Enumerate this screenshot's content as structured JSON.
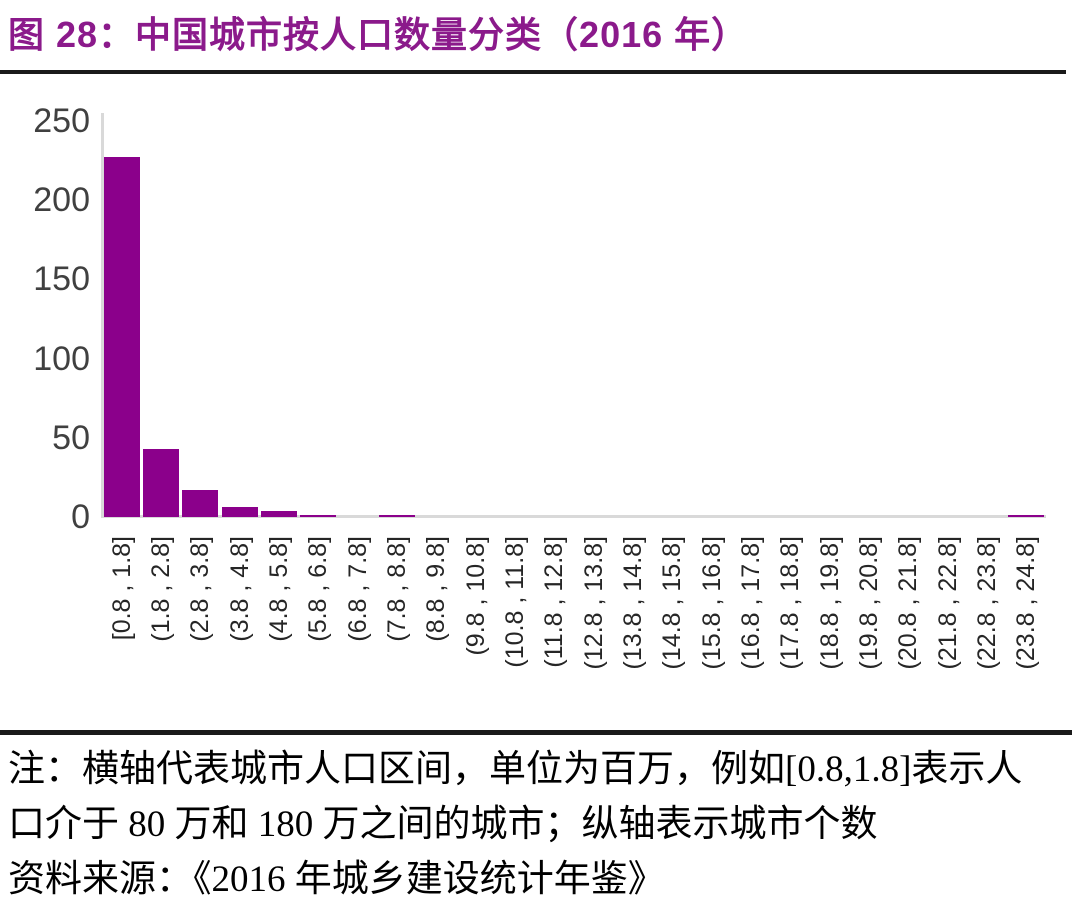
{
  "title": "图 28：中国城市按人口数量分类（2016 年）",
  "colors": {
    "title": "#8B1A8B",
    "bar": "#8B008B",
    "axis": "#D9D9D9",
    "divider": "#1A1A1A",
    "tick_text": "#404040"
  },
  "chart_data": {
    "type": "bar",
    "title": "图 28：中国城市按人口数量分类（2016 年）",
    "xlabel": "",
    "ylabel": "",
    "categories": [
      "[0.8 , 1.8]",
      "(1.8 , 2.8]",
      "(2.8 , 3.8]",
      "(3.8 , 4.8]",
      "(4.8 , 5.8]",
      "(5.8 , 6.8]",
      "(6.8 , 7.8]",
      "(7.8 , 8.8]",
      "(8.8 , 9.8]",
      "(9.8 , 10.8]",
      "(10.8 , 11.8]",
      "(11.8 , 12.8]",
      "(12.8 , 13.8]",
      "(13.8 , 14.8]",
      "(14.8 , 15.8]",
      "(15.8 , 16.8]",
      "(16.8 , 17.8]",
      "(17.8 , 18.8]",
      "(18.8 , 19.8]",
      "(19.8 , 20.8]",
      "(20.8 , 21.8]",
      "(21.8 , 22.8]",
      "(22.8 , 23.8]",
      "(23.8 , 24.8]"
    ],
    "values": [
      227,
      43,
      17,
      6,
      4,
      1,
      0,
      1,
      0,
      0,
      0,
      0,
      0,
      0,
      0,
      0,
      0,
      0,
      0,
      0,
      0,
      0,
      0,
      1
    ],
    "ylim": [
      0,
      250
    ],
    "yticks": [
      0,
      50,
      100,
      150,
      200,
      250
    ],
    "grid": false,
    "legend": "none",
    "bar_color": "#8B008B"
  },
  "notes": {
    "line1": "注：横轴代表城市人口区间，单位为百万，例如[0.8,1.8]表示人",
    "line2": "口介于 80 万和 180 万之间的城市；纵轴表示城市个数",
    "line3": "资料来源：《2016 年城乡建设统计年鉴》"
  }
}
